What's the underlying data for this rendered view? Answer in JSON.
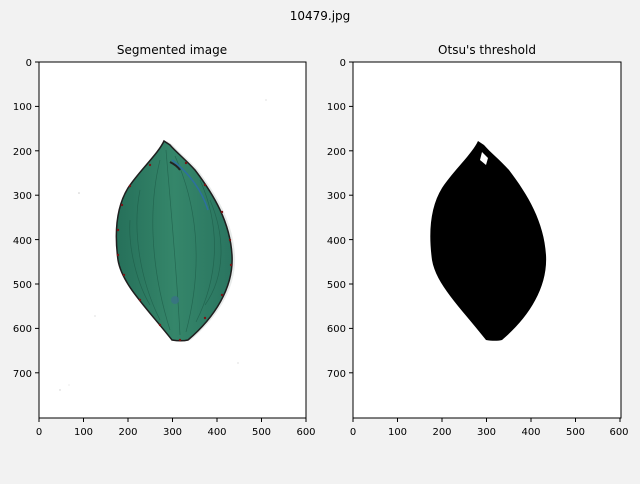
{
  "figure": {
    "suptitle": "10479.jpg",
    "background": "#f2f2f2"
  },
  "panels": [
    {
      "title": "Segmented image",
      "image": "leaf-segmented-with-contour",
      "x_ticks": [
        "0",
        "100",
        "200",
        "300",
        "400",
        "500",
        "600"
      ],
      "y_ticks": [
        "0",
        "100",
        "200",
        "300",
        "400",
        "500",
        "600",
        "700"
      ]
    },
    {
      "title": "Otsu's threshold",
      "image": "leaf-binary-mask",
      "x_ticks": [
        "0",
        "100",
        "200",
        "300",
        "400",
        "500",
        "600"
      ],
      "y_ticks": [
        "0",
        "100",
        "200",
        "300",
        "400",
        "500",
        "600",
        "700"
      ]
    }
  ],
  "colors": {
    "leaf_green": "#2f7e62",
    "contour_dark": "#1f1f1f",
    "contour_points": "#7a1515",
    "mask": "#000000"
  }
}
